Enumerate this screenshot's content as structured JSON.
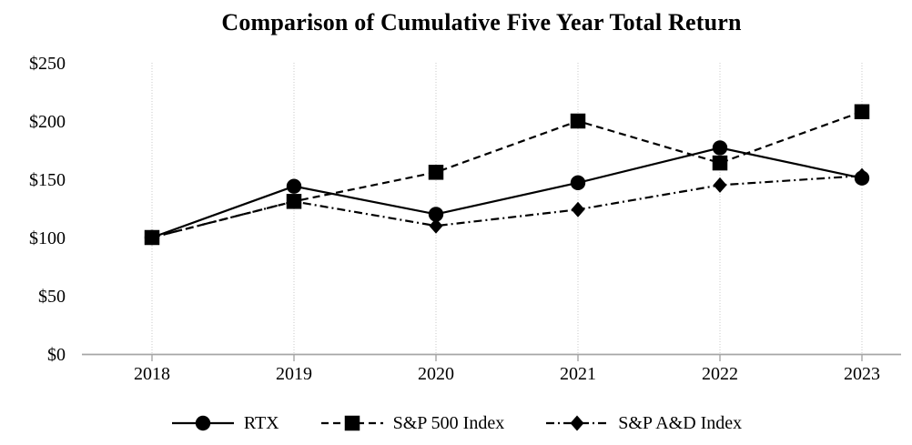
{
  "title": "Comparison of Cumulative Five Year Total Return",
  "chart_data": {
    "type": "line",
    "title": "Comparison of Cumulative Five Year Total Return",
    "xlabel": "",
    "ylabel": "",
    "categories": [
      "2018",
      "2019",
      "2020",
      "2021",
      "2022",
      "2023"
    ],
    "series": [
      {
        "name": "RTX",
        "marker": "circle",
        "line_style": "solid",
        "values": [
          100,
          144,
          120,
          147,
          177,
          151
        ]
      },
      {
        "name": "S&P 500 Index",
        "marker": "square",
        "line_style": "dashed",
        "values": [
          100,
          131,
          156,
          200,
          164,
          208
        ]
      },
      {
        "name": "S&P A&D Index",
        "marker": "diamond",
        "line_style": "dashdot",
        "values": [
          100,
          131,
          110,
          124,
          145,
          153
        ]
      }
    ],
    "ylim": [
      0,
      250
    ],
    "yticks": [
      0,
      50,
      100,
      150,
      200,
      250
    ],
    "ytick_labels": [
      "$0",
      "$50",
      "$100",
      "$150",
      "$200",
      "$250"
    ],
    "grid": "vertical-dotted-only",
    "legend_position": "bottom-center",
    "colors": {
      "series": "#000000",
      "text": "#000000",
      "axis_line": "#a6a6a6",
      "gridline": "#c9c9c9",
      "background": "#ffffff"
    }
  }
}
